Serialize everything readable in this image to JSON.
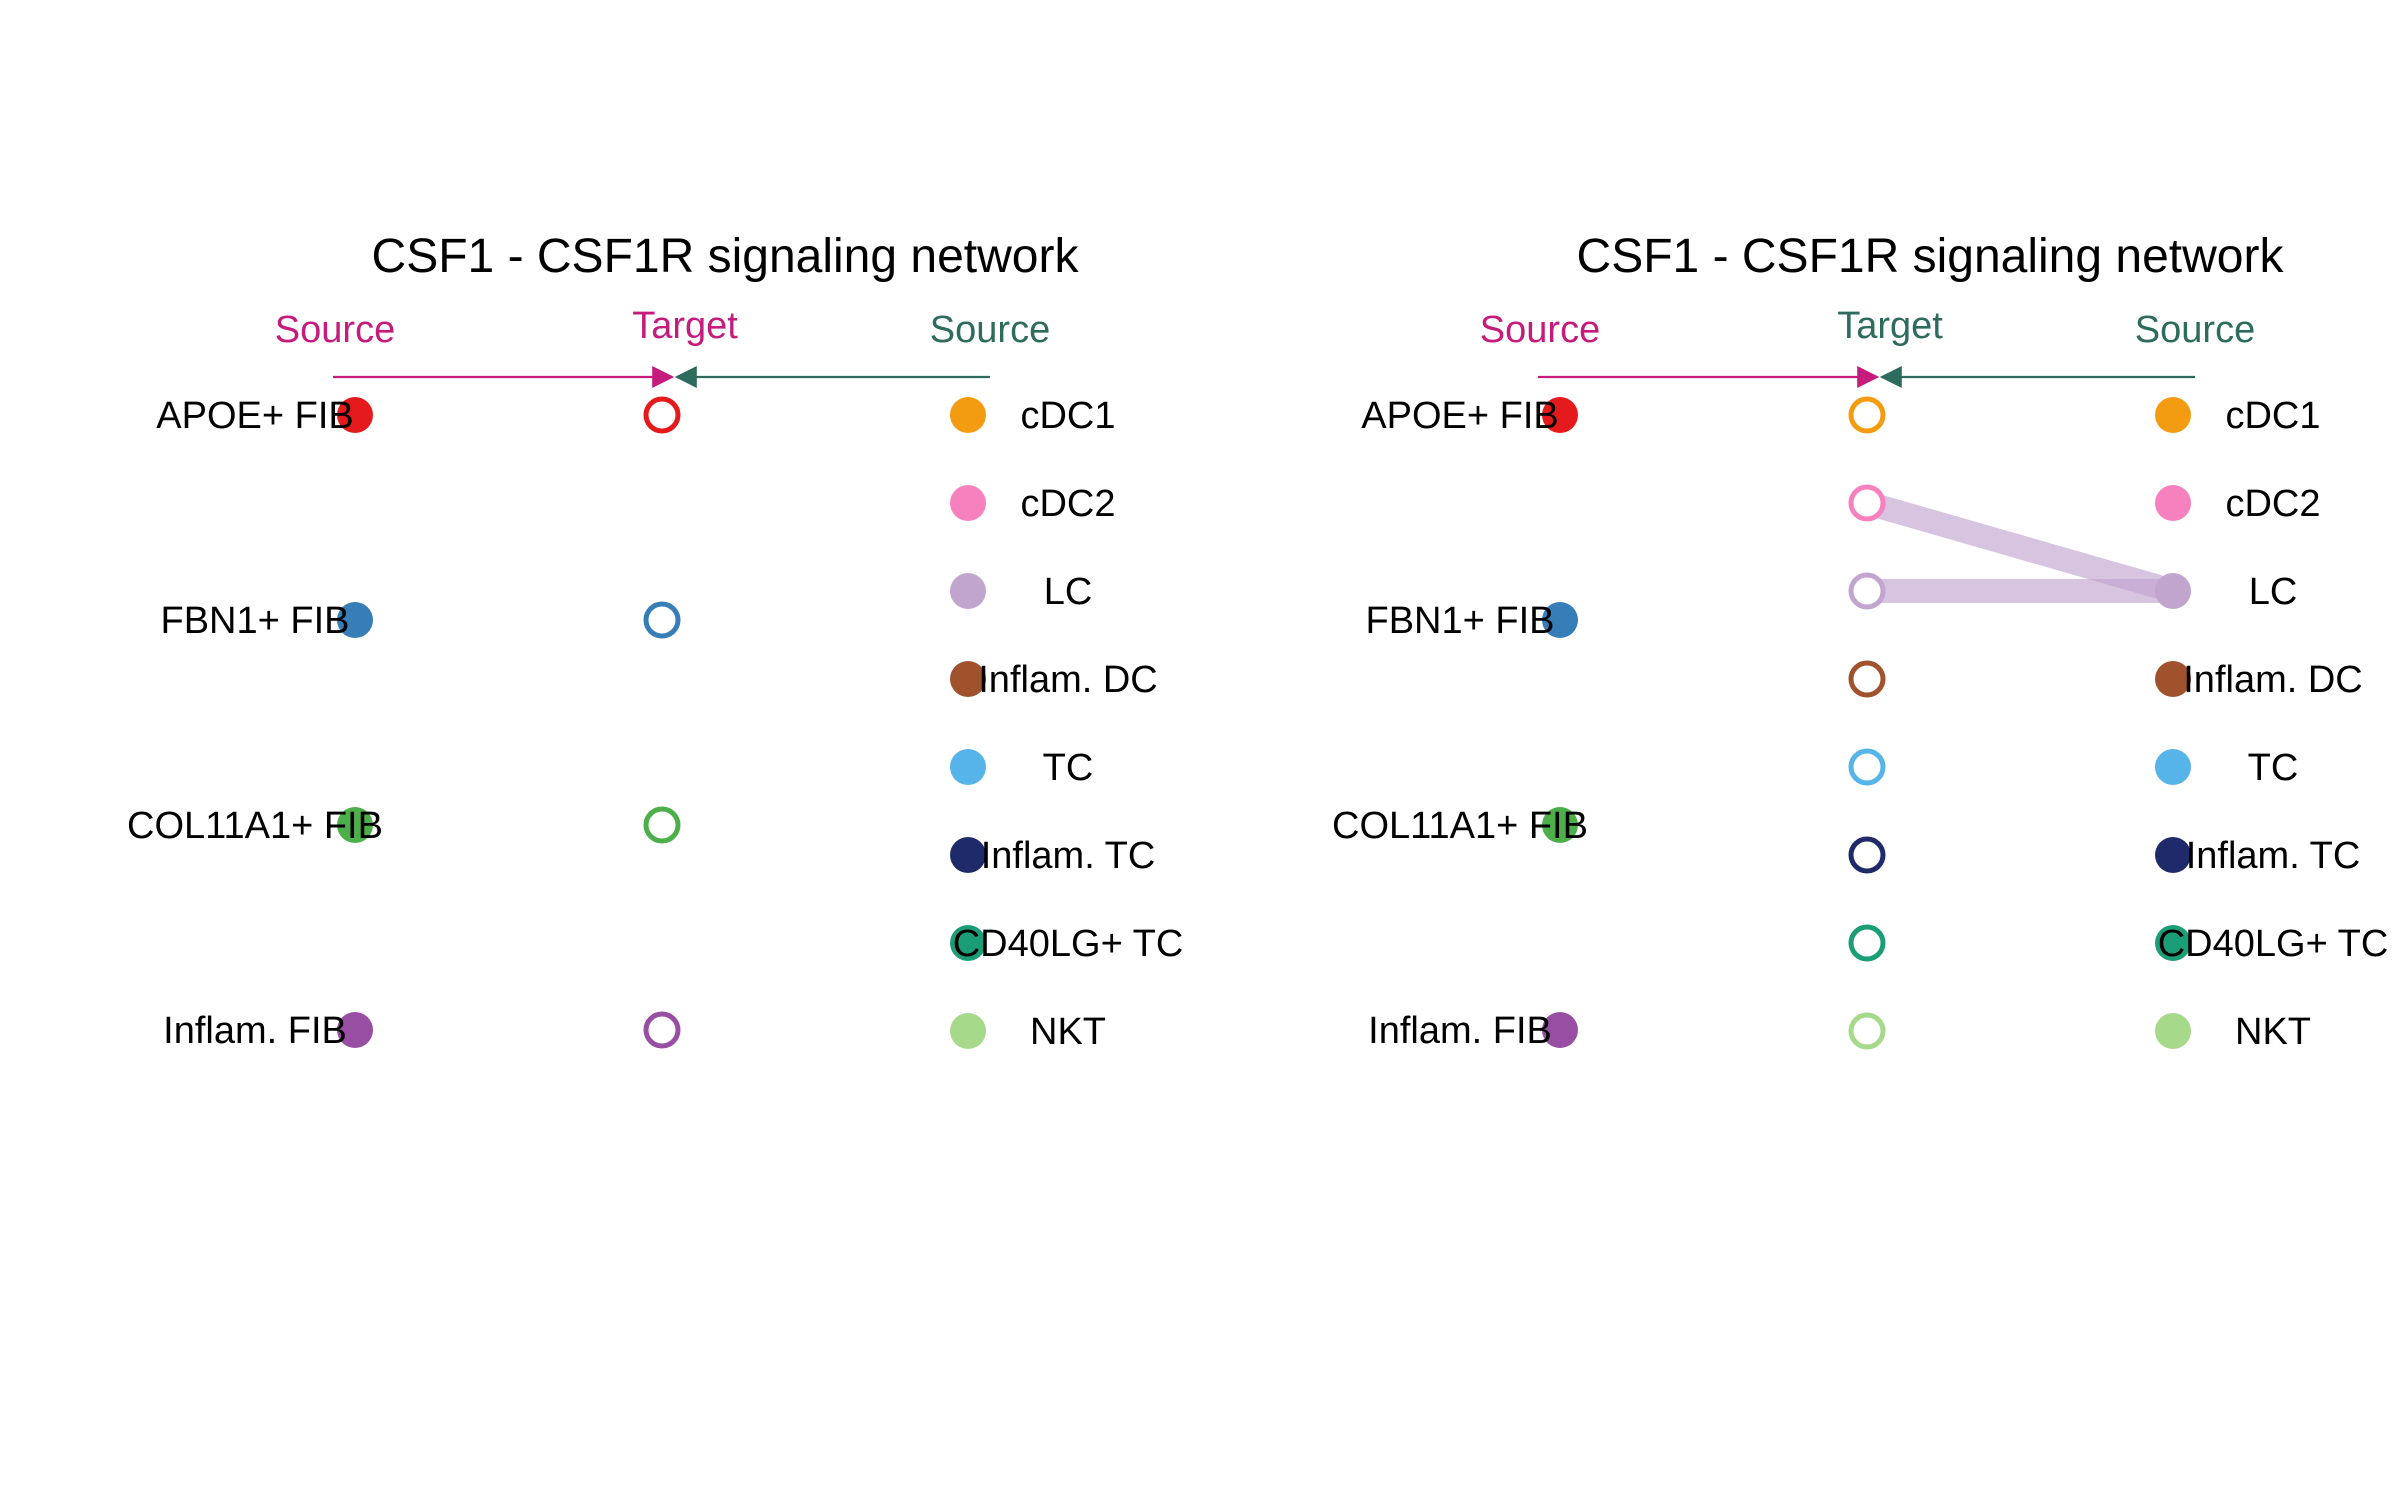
{
  "panels": [
    {
      "title": "CSF1 - CSF1R signaling network",
      "header": {
        "left_source": "Source",
        "target": "Target",
        "right_source": "Source"
      },
      "header_colors": {
        "left": "#c51b7d",
        "target": "#c51b7d",
        "right": "#2d6b5c"
      },
      "left_nodes": [
        {
          "label": "APOE+ FIB",
          "color": "#e41a1c"
        },
        {
          "label": "FBN1+ FIB",
          "color": "#377eb8"
        },
        {
          "label": "COL11A1+ FIB",
          "color": "#4daf4a"
        },
        {
          "label": "Inflam. FIB",
          "color": "#984ea3"
        }
      ],
      "targets": [
        {
          "color": "#e41a1c",
          "row": 0
        },
        {
          "color": "#377eb8",
          "row": 1
        },
        {
          "color": "#4daf4a",
          "row": 2
        },
        {
          "color": "#984ea3",
          "row": 3
        }
      ],
      "target_layout": "left",
      "right_nodes": [
        {
          "label": "cDC1",
          "color": "#f39c12"
        },
        {
          "label": "cDC2",
          "color": "#f781bf"
        },
        {
          "label": "LC",
          "color": "#c2a5cf"
        },
        {
          "label": "Inflam. DC",
          "color": "#a0522d"
        },
        {
          "label": "TC",
          "color": "#56b4e9"
        },
        {
          "label": "Inflam. TC",
          "color": "#1f2a6b"
        },
        {
          "label": "CD40LG+ TC",
          "color": "#1b9e77"
        },
        {
          "label": "NKT",
          "color": "#a6d98a"
        }
      ],
      "edges": []
    },
    {
      "title": "CSF1 - CSF1R signaling network",
      "header": {
        "left_source": "Source",
        "target": "Target",
        "right_source": "Source"
      },
      "header_colors": {
        "left": "#c51b7d",
        "target": "#2d6b5c",
        "right": "#2d6b5c"
      },
      "left_nodes": [
        {
          "label": "APOE+ FIB",
          "color": "#e41a1c"
        },
        {
          "label": "FBN1+ FIB",
          "color": "#377eb8"
        },
        {
          "label": "COL11A1+ FIB",
          "color": "#4daf4a"
        },
        {
          "label": "Inflam. FIB",
          "color": "#984ea3"
        }
      ],
      "targets": [
        {
          "color": "#f39c12",
          "row": 0
        },
        {
          "color": "#f781bf",
          "row": 1
        },
        {
          "color": "#c2a5cf",
          "row": 2
        },
        {
          "color": "#a0522d",
          "row": 3
        },
        {
          "color": "#56b4e9",
          "row": 4
        },
        {
          "color": "#1f2a6b",
          "row": 5
        },
        {
          "color": "#1b9e77",
          "row": 6
        },
        {
          "color": "#a6d98a",
          "row": 7
        }
      ],
      "target_layout": "right",
      "right_nodes": [
        {
          "label": "cDC1",
          "color": "#f39c12"
        },
        {
          "label": "cDC2",
          "color": "#f781bf"
        },
        {
          "label": "LC",
          "color": "#c2a5cf"
        },
        {
          "label": "Inflam. DC",
          "color": "#a0522d"
        },
        {
          "label": "TC",
          "color": "#56b4e9"
        },
        {
          "label": "Inflam. TC",
          "color": "#1f2a6b"
        },
        {
          "label": "CD40LG+ TC",
          "color": "#1b9e77"
        },
        {
          "label": "NKT",
          "color": "#a6d98a"
        }
      ],
      "edges": [
        {
          "from_right": "LC",
          "to_target": "cDC2",
          "color": "#c2a5cf"
        },
        {
          "from_right": "LC",
          "to_target": "LC",
          "color": "#c2a5cf"
        }
      ]
    }
  ]
}
